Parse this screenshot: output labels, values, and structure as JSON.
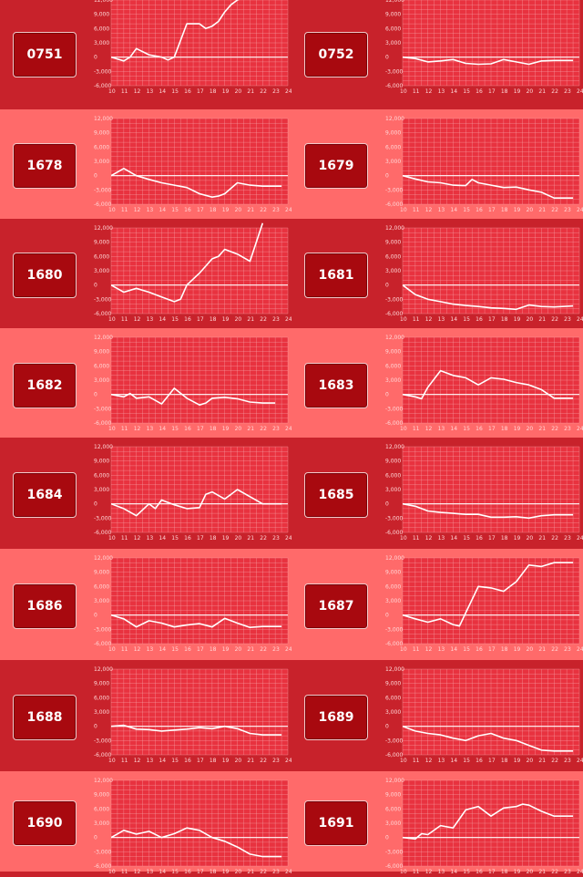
{
  "colors": {
    "dark_row": "#c8222b",
    "light_row": "#ff6a6a",
    "plot_bg": "#e8323f",
    "grid": "#f7a1a6",
    "line": "#ffffff",
    "button": "#a8090f"
  },
  "chart_data": [
    {
      "type": "line",
      "id": "0751",
      "xlim": [
        10,
        24
      ],
      "ylim": [
        -6000,
        12000
      ],
      "x": [
        10,
        11,
        11.5,
        12,
        13,
        14,
        14.5,
        15,
        16,
        17,
        17.5,
        18,
        18.5,
        19,
        19.5,
        20,
        20.5
      ],
      "y": [
        0,
        -800,
        0,
        1800,
        500,
        0,
        -600,
        0,
        7000,
        7000,
        6000,
        6500,
        7500,
        9500,
        11000,
        12000,
        12500
      ]
    },
    {
      "type": "line",
      "id": "0752",
      "xlim": [
        10,
        24
      ],
      "ylim": [
        -6000,
        12000
      ],
      "x": [
        10,
        11,
        12,
        13,
        14,
        15,
        16,
        17,
        18,
        19,
        20,
        21,
        22,
        23.5
      ],
      "y": [
        0,
        -300,
        -1000,
        -800,
        -500,
        -1300,
        -1500,
        -1400,
        -500,
        -1000,
        -1500,
        -800,
        -700,
        -700
      ]
    },
    {
      "type": "line",
      "id": "1678",
      "xlim": [
        10,
        24
      ],
      "ylim": [
        -6000,
        12000
      ],
      "x": [
        10,
        11,
        12,
        13,
        14,
        15,
        16,
        17,
        18,
        18.5,
        19,
        20,
        21,
        22,
        23.5
      ],
      "y": [
        0,
        1500,
        0,
        -800,
        -1500,
        -2000,
        -2500,
        -3800,
        -4500,
        -4300,
        -3800,
        -1500,
        -2000,
        -2200,
        -2200
      ]
    },
    {
      "type": "line",
      "id": "1679",
      "xlim": [
        10,
        24
      ],
      "ylim": [
        -6000,
        12000
      ],
      "x": [
        10,
        11,
        12,
        13,
        14,
        15,
        15.5,
        16,
        17,
        18,
        19,
        20,
        21,
        22,
        23.5
      ],
      "y": [
        0,
        -700,
        -1300,
        -1500,
        -2000,
        -2100,
        -800,
        -1500,
        -2000,
        -2500,
        -2400,
        -3000,
        -3500,
        -4700,
        -4700
      ]
    },
    {
      "type": "line",
      "id": "1680",
      "xlim": [
        10,
        24
      ],
      "ylim": [
        -6000,
        12000
      ],
      "x": [
        10,
        11,
        12,
        13,
        14,
        15,
        15.5,
        16,
        17,
        18,
        18.5,
        19,
        20,
        21,
        22
      ],
      "y": [
        0,
        -1500,
        -700,
        -1500,
        -2500,
        -3500,
        -3000,
        0,
        2500,
        5500,
        6000,
        7500,
        6500,
        5000,
        13000
      ]
    },
    {
      "type": "line",
      "id": "1681",
      "xlim": [
        10,
        24
      ],
      "ylim": [
        -6000,
        12000
      ],
      "x": [
        10,
        11,
        12,
        13,
        14,
        15,
        16,
        17,
        18,
        19,
        20,
        21,
        22,
        23.5
      ],
      "y": [
        0,
        -2000,
        -3000,
        -3500,
        -4000,
        -4300,
        -4500,
        -4800,
        -4900,
        -5100,
        -4200,
        -4500,
        -4600,
        -4400
      ]
    },
    {
      "type": "line",
      "id": "1682",
      "xlim": [
        10,
        24
      ],
      "ylim": [
        -6000,
        12000
      ],
      "x": [
        10,
        11,
        11.5,
        12,
        13,
        14,
        15,
        16,
        17,
        17.5,
        18,
        19,
        20,
        21,
        22,
        23
      ],
      "y": [
        0,
        -500,
        200,
        -800,
        -500,
        -2000,
        1300,
        -800,
        -2200,
        -1800,
        -800,
        -600,
        -900,
        -1600,
        -1800,
        -1800
      ]
    },
    {
      "type": "line",
      "id": "1683",
      "xlim": [
        10,
        24
      ],
      "ylim": [
        -6000,
        12000
      ],
      "x": [
        10,
        11,
        11.5,
        12,
        13,
        14,
        15,
        16,
        17,
        18,
        19,
        20,
        21,
        22,
        23.5
      ],
      "y": [
        0,
        -500,
        -900,
        1500,
        5000,
        4000,
        3500,
        2000,
        3500,
        3200,
        2500,
        2000,
        1000,
        -800,
        -800
      ]
    },
    {
      "type": "line",
      "id": "1684",
      "xlim": [
        10,
        24
      ],
      "ylim": [
        -6000,
        12000
      ],
      "x": [
        10,
        11,
        12,
        13,
        13.5,
        14,
        15,
        16,
        17,
        17.5,
        18,
        19,
        20,
        21,
        22,
        23.5
      ],
      "y": [
        0,
        -1000,
        -2500,
        0,
        -1000,
        800,
        -200,
        -1000,
        -800,
        2000,
        2500,
        1000,
        3000,
        1500,
        0,
        0
      ]
    },
    {
      "type": "line",
      "id": "1685",
      "xlim": [
        10,
        24
      ],
      "ylim": [
        -6000,
        12000
      ],
      "x": [
        10,
        11,
        12,
        13,
        14,
        15,
        16,
        17,
        18,
        19,
        20,
        21,
        22,
        23.5
      ],
      "y": [
        0,
        -500,
        -1500,
        -1800,
        -2000,
        -2200,
        -2200,
        -2800,
        -2800,
        -2700,
        -3000,
        -2500,
        -2300,
        -2300
      ]
    },
    {
      "type": "line",
      "id": "1686",
      "xlim": [
        10,
        24
      ],
      "ylim": [
        -6000,
        12000
      ],
      "x": [
        10,
        11,
        12,
        13,
        14,
        15,
        16,
        17,
        18,
        19,
        20,
        21,
        22,
        23.5
      ],
      "y": [
        0,
        -800,
        -2500,
        -1200,
        -1700,
        -2500,
        -2100,
        -1800,
        -2500,
        -700,
        -1700,
        -2600,
        -2400,
        -2400
      ]
    },
    {
      "type": "line",
      "id": "1687",
      "xlim": [
        10,
        24
      ],
      "ylim": [
        -6000,
        12000
      ],
      "x": [
        10,
        11,
        12,
        13,
        14,
        14.5,
        15,
        16,
        17,
        18,
        18.5,
        19,
        20,
        21,
        22,
        23.5
      ],
      "y": [
        0,
        -800,
        -1500,
        -800,
        -2000,
        -2300,
        500,
        6000,
        5700,
        5000,
        6000,
        7000,
        10500,
        10200,
        11000,
        11000
      ]
    },
    {
      "type": "line",
      "id": "1688",
      "xlim": [
        10,
        24
      ],
      "ylim": [
        -6000,
        12000
      ],
      "x": [
        10,
        11,
        12,
        13,
        14,
        15,
        16,
        17,
        18,
        19,
        20,
        21,
        22,
        23.5
      ],
      "y": [
        0,
        200,
        -600,
        -700,
        -1000,
        -800,
        -600,
        -300,
        -500,
        0,
        -500,
        -1500,
        -1800,
        -1800
      ]
    },
    {
      "type": "line",
      "id": "1689",
      "xlim": [
        10,
        24
      ],
      "ylim": [
        -6000,
        12000
      ],
      "x": [
        10,
        11,
        12,
        13,
        14,
        15,
        16,
        17,
        18,
        19,
        20,
        21,
        22,
        23.5
      ],
      "y": [
        0,
        -1000,
        -1500,
        -1800,
        -2500,
        -3000,
        -2000,
        -1500,
        -2500,
        -3000,
        -4000,
        -5000,
        -5200,
        -5200
      ]
    },
    {
      "type": "line",
      "id": "1690",
      "xlim": [
        10,
        24
      ],
      "ylim": [
        -6000,
        12000
      ],
      "x": [
        10,
        11,
        12,
        13,
        14,
        15,
        16,
        17,
        18,
        19,
        20,
        21,
        22,
        23.5
      ],
      "y": [
        0,
        1500,
        700,
        1300,
        0,
        800,
        2000,
        1500,
        0,
        -800,
        -2000,
        -3500,
        -4000,
        -4000
      ]
    },
    {
      "type": "line",
      "id": "1691",
      "xlim": [
        10,
        24
      ],
      "ylim": [
        -6000,
        12000
      ],
      "x": [
        10,
        11,
        11.5,
        12,
        13,
        14,
        15,
        16,
        17,
        18,
        19,
        19.5,
        20,
        21,
        22,
        23.5
      ],
      "y": [
        0,
        -300,
        800,
        600,
        2500,
        2000,
        5800,
        6500,
        4500,
        6200,
        6500,
        7000,
        6800,
        5500,
        4500,
        4500
      ]
    }
  ],
  "axis": {
    "x_ticks": [
      "10",
      "11",
      "12",
      "13",
      "14",
      "15",
      "16",
      "17",
      "18",
      "19",
      "20",
      "21",
      "22",
      "23",
      "24"
    ],
    "y_ticks": [
      "12,000",
      "9,000",
      "6,000",
      "3,000",
      "0",
      "-3,000",
      "-6,000"
    ]
  }
}
